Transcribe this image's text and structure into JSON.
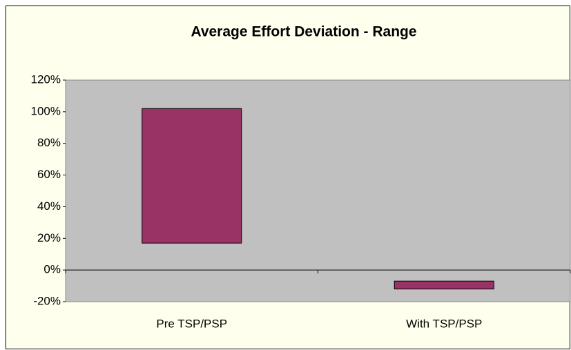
{
  "chart_data": {
    "type": "range-bar",
    "title": "Average Effort Deviation - Range",
    "categories": [
      "Pre TSP/PSP",
      "With TSP/PSP"
    ],
    "low": [
      17,
      -12
    ],
    "high": [
      102,
      -7
    ],
    "color": "#993366",
    "ylim": [
      -20,
      120
    ],
    "yticks": [
      {
        "value": -20,
        "label": "-20%"
      },
      {
        "value": 0,
        "label": "0%"
      },
      {
        "value": 20,
        "label": "20%"
      },
      {
        "value": 40,
        "label": "40%"
      },
      {
        "value": 60,
        "label": "60%"
      },
      {
        "value": 80,
        "label": "80%"
      },
      {
        "value": 100,
        "label": "100%"
      },
      {
        "value": 120,
        "label": "120%"
      }
    ],
    "grid": false
  }
}
